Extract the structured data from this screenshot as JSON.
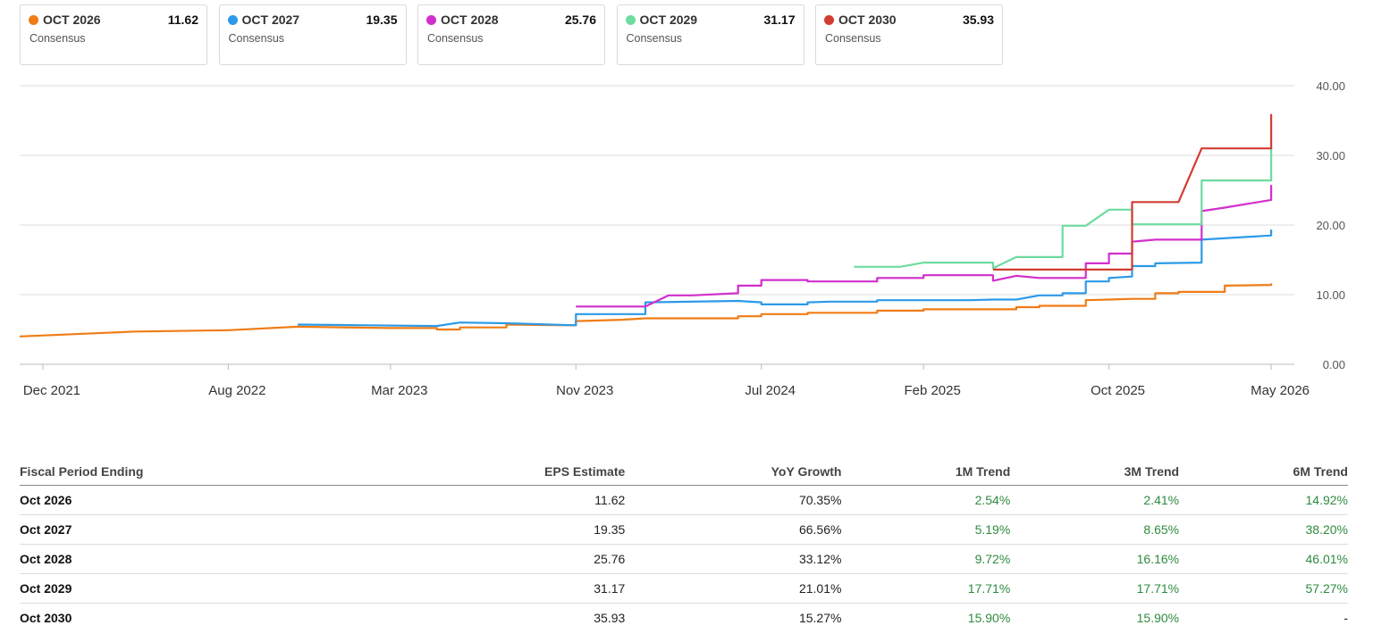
{
  "legend": [
    {
      "label": "OCT 2026",
      "value": "11.62",
      "sub": "Consensus",
      "color": "#f07c16"
    },
    {
      "label": "OCT 2027",
      "value": "19.35",
      "sub": "Consensus",
      "color": "#2c9ae8"
    },
    {
      "label": "OCT 2028",
      "value": "25.76",
      "sub": "Consensus",
      "color": "#d12fcb"
    },
    {
      "label": "OCT 2029",
      "value": "31.17",
      "sub": "Consensus",
      "color": "#6edb9f"
    },
    {
      "label": "OCT 2030",
      "value": "35.93",
      "sub": "Consensus",
      "color": "#d23c32"
    }
  ],
  "chart_data": {
    "type": "line",
    "title": "",
    "xlabel": "",
    "ylabel": "",
    "ylim": [
      0,
      40
    ],
    "yticks": [
      "0.00",
      "10.00",
      "20.00",
      "30.00",
      "40.00"
    ],
    "xticks": [
      "Dec 2021",
      "Aug 2022",
      "Mar 2023",
      "Nov 2023",
      "Jul 2024",
      "Feb 2025",
      "Oct 2025",
      "May 2026"
    ],
    "grid": true,
    "y_axis_position": "right",
    "series": [
      {
        "name": "OCT 2026",
        "color": "#f07c16",
        "points": [
          [
            "2021-11",
            4.0
          ],
          [
            "2022-04",
            4.7
          ],
          [
            "2022-08",
            4.9
          ],
          [
            "2022-11",
            5.4
          ],
          [
            "2023-03",
            5.2
          ],
          [
            "2023-05",
            5.2
          ],
          [
            "2023-05",
            5.0
          ],
          [
            "2023-06",
            5.0
          ],
          [
            "2023-06",
            5.3
          ],
          [
            "2023-08",
            5.3
          ],
          [
            "2023-08",
            5.7
          ],
          [
            "2023-11",
            5.6
          ],
          [
            "2023-11",
            6.2
          ],
          [
            "2024-01",
            6.4
          ],
          [
            "2024-02",
            6.6
          ],
          [
            "2024-06",
            6.6
          ],
          [
            "2024-06",
            6.9
          ],
          [
            "2024-07",
            6.9
          ],
          [
            "2024-07",
            7.2
          ],
          [
            "2024-09",
            7.2
          ],
          [
            "2024-09",
            7.4
          ],
          [
            "2024-12",
            7.4
          ],
          [
            "2024-12",
            7.7
          ],
          [
            "2025-02",
            7.7
          ],
          [
            "2025-02",
            7.9
          ],
          [
            "2025-06",
            7.9
          ],
          [
            "2025-06",
            8.2
          ],
          [
            "2025-07",
            8.2
          ],
          [
            "2025-07",
            8.4
          ],
          [
            "2025-09",
            8.4
          ],
          [
            "2025-09",
            9.2
          ],
          [
            "2025-10",
            9.3
          ],
          [
            "2025-11",
            9.4
          ],
          [
            "2025-12",
            9.4
          ],
          [
            "2025-12",
            10.2
          ],
          [
            "2026-01",
            10.2
          ],
          [
            "2026-01",
            10.4
          ],
          [
            "2026-03",
            10.4
          ],
          [
            "2026-03",
            11.3
          ],
          [
            "2026-05",
            11.4
          ],
          [
            "2026-05",
            11.62
          ]
        ]
      },
      {
        "name": "OCT 2027",
        "color": "#2c9ae8",
        "points": [
          [
            "2022-11",
            5.7
          ],
          [
            "2023-02",
            5.6
          ],
          [
            "2023-05",
            5.5
          ],
          [
            "2023-06",
            6.0
          ],
          [
            "2023-08",
            5.9
          ],
          [
            "2023-11",
            5.6
          ],
          [
            "2023-11",
            7.2
          ],
          [
            "2024-02",
            7.2
          ],
          [
            "2024-02",
            8.9
          ],
          [
            "2024-06",
            9.1
          ],
          [
            "2024-07",
            8.9
          ],
          [
            "2024-07",
            8.6
          ],
          [
            "2024-09",
            8.6
          ],
          [
            "2024-09",
            8.9
          ],
          [
            "2024-10",
            9.0
          ],
          [
            "2024-12",
            9.0
          ],
          [
            "2024-12",
            9.2
          ],
          [
            "2025-04",
            9.2
          ],
          [
            "2025-05",
            9.3
          ],
          [
            "2025-06",
            9.3
          ],
          [
            "2025-07",
            9.9
          ],
          [
            "2025-08",
            9.9
          ],
          [
            "2025-08",
            10.2
          ],
          [
            "2025-09",
            10.2
          ],
          [
            "2025-09",
            11.9
          ],
          [
            "2025-10",
            11.9
          ],
          [
            "2025-10",
            12.4
          ],
          [
            "2025-11",
            12.6
          ],
          [
            "2025-11",
            14.1
          ],
          [
            "2025-12",
            14.1
          ],
          [
            "2025-12",
            14.5
          ],
          [
            "2026-02",
            14.6
          ],
          [
            "2026-02",
            17.9
          ],
          [
            "2026-05",
            18.5
          ],
          [
            "2026-05",
            19.35
          ]
        ]
      },
      {
        "name": "OCT 2028",
        "color": "#d12fcb",
        "points": [
          [
            "2023-11",
            8.3
          ],
          [
            "2024-02",
            8.3
          ],
          [
            "2024-03",
            9.9
          ],
          [
            "2024-04",
            9.9
          ],
          [
            "2024-06",
            10.2
          ],
          [
            "2024-06",
            11.3
          ],
          [
            "2024-07",
            11.3
          ],
          [
            "2024-07",
            12.1
          ],
          [
            "2024-09",
            12.1
          ],
          [
            "2024-09",
            11.9
          ],
          [
            "2024-12",
            11.9
          ],
          [
            "2024-12",
            12.4
          ],
          [
            "2025-02",
            12.4
          ],
          [
            "2025-02",
            12.8
          ],
          [
            "2025-05",
            12.8
          ],
          [
            "2025-05",
            12.0
          ],
          [
            "2025-06",
            12.7
          ],
          [
            "2025-07",
            12.4
          ],
          [
            "2025-09",
            12.4
          ],
          [
            "2025-09",
            14.5
          ],
          [
            "2025-10",
            14.5
          ],
          [
            "2025-10",
            15.9
          ],
          [
            "2025-11",
            15.9
          ],
          [
            "2025-11",
            17.6
          ],
          [
            "2025-12",
            17.9
          ],
          [
            "2026-02",
            17.9
          ],
          [
            "2026-02",
            22.0
          ],
          [
            "2026-03",
            22.5
          ],
          [
            "2026-05",
            23.6
          ],
          [
            "2026-05",
            25.76
          ]
        ]
      },
      {
        "name": "OCT 2029",
        "color": "#6edb9f",
        "points": [
          [
            "2024-11",
            14.0
          ],
          [
            "2025-01",
            14.0
          ],
          [
            "2025-02",
            14.6
          ],
          [
            "2025-05",
            14.6
          ],
          [
            "2025-05",
            13.8
          ],
          [
            "2025-06",
            15.4
          ],
          [
            "2025-08",
            15.4
          ],
          [
            "2025-08",
            19.9
          ],
          [
            "2025-09",
            19.9
          ],
          [
            "2025-10",
            22.2
          ],
          [
            "2025-11",
            22.2
          ],
          [
            "2025-11",
            20.1
          ],
          [
            "2026-02",
            20.1
          ],
          [
            "2026-02",
            26.4
          ],
          [
            "2026-05",
            26.4
          ],
          [
            "2026-05",
            31.17
          ]
        ]
      },
      {
        "name": "OCT 2030",
        "color": "#d23c32",
        "points": [
          [
            "2025-05",
            13.6
          ],
          [
            "2025-11",
            13.6
          ],
          [
            "2025-11",
            23.3
          ],
          [
            "2026-01",
            23.3
          ],
          [
            "2026-02",
            31.0
          ],
          [
            "2026-05",
            31.0
          ],
          [
            "2026-05",
            35.93
          ]
        ]
      }
    ]
  },
  "table": {
    "headers": [
      "Fiscal Period Ending",
      "EPS Estimate",
      "YoY Growth",
      "1M Trend",
      "3M Trend",
      "6M Trend"
    ],
    "rows": [
      [
        "Oct 2026",
        "11.62",
        "70.35%",
        "2.54%",
        "2.41%",
        "14.92%"
      ],
      [
        "Oct 2027",
        "19.35",
        "66.56%",
        "5.19%",
        "8.65%",
        "38.20%"
      ],
      [
        "Oct 2028",
        "25.76",
        "33.12%",
        "9.72%",
        "16.16%",
        "46.01%"
      ],
      [
        "Oct 2029",
        "31.17",
        "21.01%",
        "17.71%",
        "17.71%",
        "57.27%"
      ],
      [
        "Oct 2030",
        "35.93",
        "15.27%",
        "15.90%",
        "15.90%",
        "-"
      ]
    ]
  }
}
